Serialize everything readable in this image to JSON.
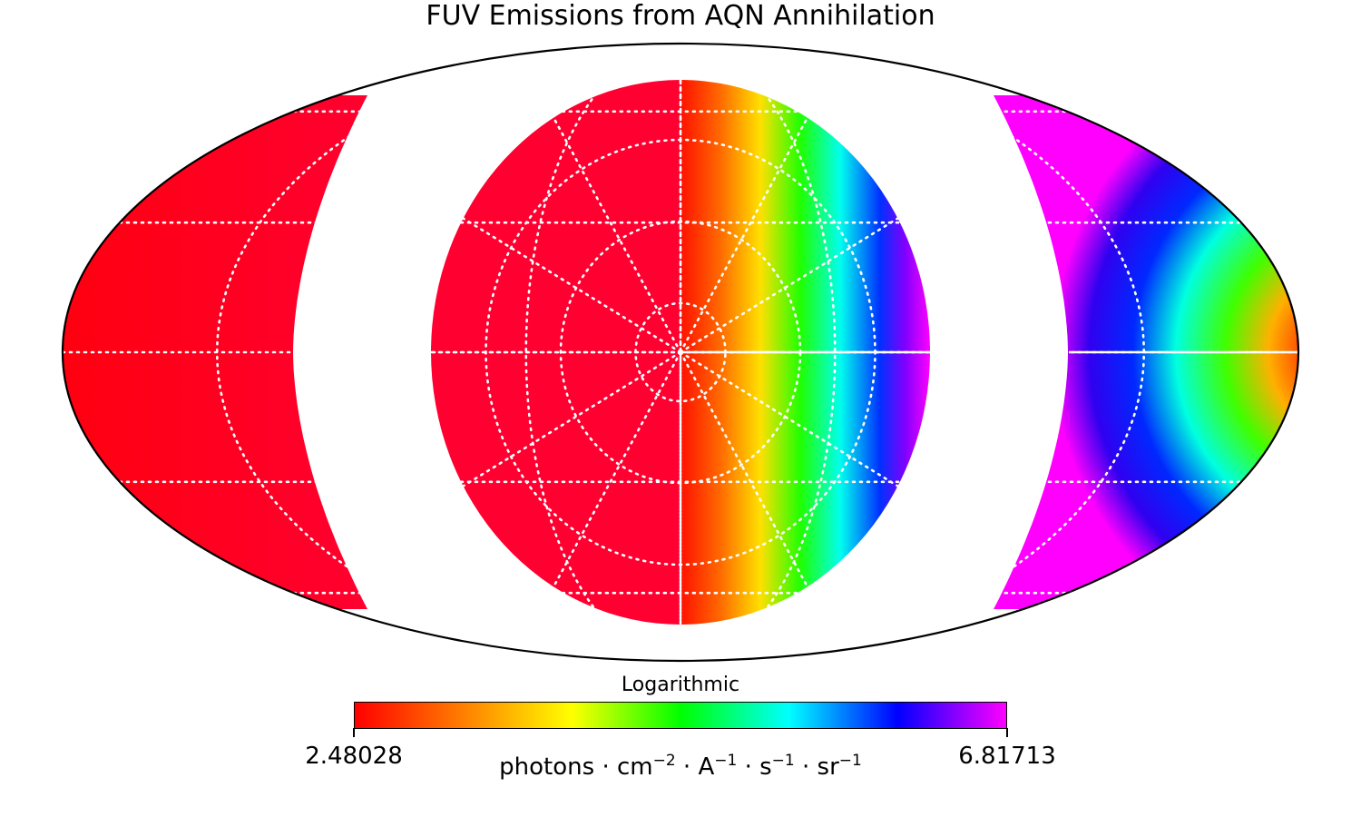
{
  "chart_data": {
    "type": "heatmap",
    "projection": "mollweide",
    "title": "FUV Emissions from AQN Annihilation",
    "colormap": [
      "#ff0000",
      "#ff7f00",
      "#ffff00",
      "#00ff00",
      "#00ffff",
      "#0000ff",
      "#ff00ff"
    ],
    "color_scale": "Logarithmic",
    "color_range": [
      2.48028,
      6.81713
    ],
    "min_label": "2.48028",
    "max_label": "6.81713",
    "unit_parts": [
      {
        "text": "photons · cm",
        "sup": "−2"
      },
      {
        "text": " · A",
        "sup": "−1"
      },
      {
        "text": " · s",
        "sup": "−1"
      },
      {
        "text": " · sr",
        "sup": "−1"
      }
    ],
    "graticule": "dotted white",
    "masked_regions": "white (unobserved)"
  }
}
